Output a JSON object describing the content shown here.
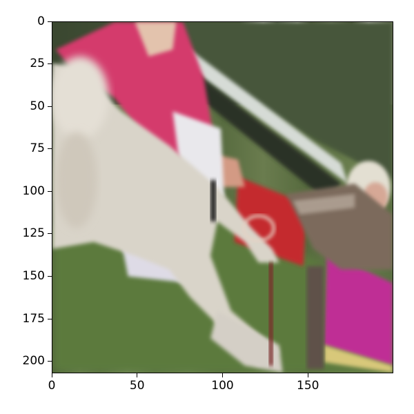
{
  "image": {
    "subject": "dog-show",
    "palette": {
      "grass": "#5d7a3f",
      "pink-jacket": "#d83a6a",
      "dog-fur": "#d8d2c8",
      "red-board": "#c8282e",
      "magenta-board": "#c0309a",
      "trees": "#3f4a35",
      "sky": "#e6ebe8",
      "skin": "#d9a28c"
    }
  },
  "axes": {
    "x_ticks": [
      {
        "value": 0,
        "label": "0"
      },
      {
        "value": 50,
        "label": "50"
      },
      {
        "value": 100,
        "label": "100"
      },
      {
        "value": 150,
        "label": "150"
      }
    ],
    "y_ticks": [
      {
        "value": 0,
        "label": "0"
      },
      {
        "value": 25,
        "label": "25"
      },
      {
        "value": 50,
        "label": "50"
      },
      {
        "value": 75,
        "label": "75"
      },
      {
        "value": 100,
        "label": "100"
      },
      {
        "value": 125,
        "label": "125"
      },
      {
        "value": 150,
        "label": "150"
      },
      {
        "value": 175,
        "label": "175"
      },
      {
        "value": 200,
        "label": "200"
      }
    ],
    "x_range": [
      0,
      200
    ],
    "y_range": [
      0,
      207
    ]
  }
}
